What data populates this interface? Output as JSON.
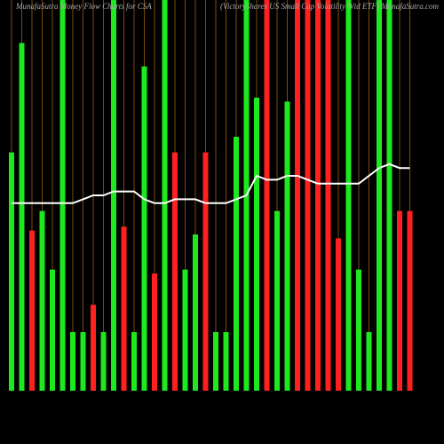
{
  "chart_data": {
    "type": "bar",
    "title": "MunafaSutra Money Flow Charts for CSA",
    "subtitle": "(VictoryShares US Small Cap Volatility Wtd ETF) MunafaSutra.com",
    "ylim": [
      0,
      100
    ],
    "grid": true,
    "grid_color": "#7a4a10",
    "series": [
      {
        "values": [
          61,
          89,
          41,
          46,
          31,
          100,
          15,
          15,
          22,
          15,
          100,
          42,
          15,
          83,
          30,
          100,
          61,
          31,
          40,
          61,
          15,
          15,
          65,
          100,
          75,
          100,
          46,
          74,
          100,
          100,
          100,
          100,
          39,
          100,
          31,
          15,
          100,
          100,
          46,
          46
        ],
        "colors": [
          "#1ee81e",
          "#1ee81e",
          "#ff2020",
          "#1ee81e",
          "#1ee81e",
          "#1ee81e",
          "#1ee81e",
          "#1ee81e",
          "#ff2020",
          "#1ee81e",
          "#1ee81e",
          "#ff2020",
          "#1ee81e",
          "#1ee81e",
          "#ff2020",
          "#1ee81e",
          "#ff2020",
          "#1ee81e",
          "#1ee81e",
          "#ff2020",
          "#1ee81e",
          "#1ee81e",
          "#1ee81e",
          "#1ee81e",
          "#1ee81e",
          "#ff2020",
          "#1ee81e",
          "#1ee81e",
          "#ff2020",
          "#ff2020",
          "#ff2020",
          "#ff2020",
          "#ff2020",
          "#1ee81e",
          "#1ee81e",
          "#1ee81e",
          "#1ee81e",
          "#1ee81e",
          "#ff2020",
          "#ff2020"
        ]
      },
      {
        "type": "line",
        "color": "#ffffff",
        "values": [
          48,
          48,
          48,
          48,
          48,
          48,
          48,
          49,
          50,
          50,
          51,
          51,
          51,
          49,
          48,
          48,
          49,
          49,
          49,
          48,
          48,
          48,
          49,
          50,
          55,
          54,
          54,
          55,
          55,
          54,
          53,
          53,
          53,
          53,
          53,
          55,
          57,
          58,
          57,
          57
        ]
      }
    ]
  }
}
